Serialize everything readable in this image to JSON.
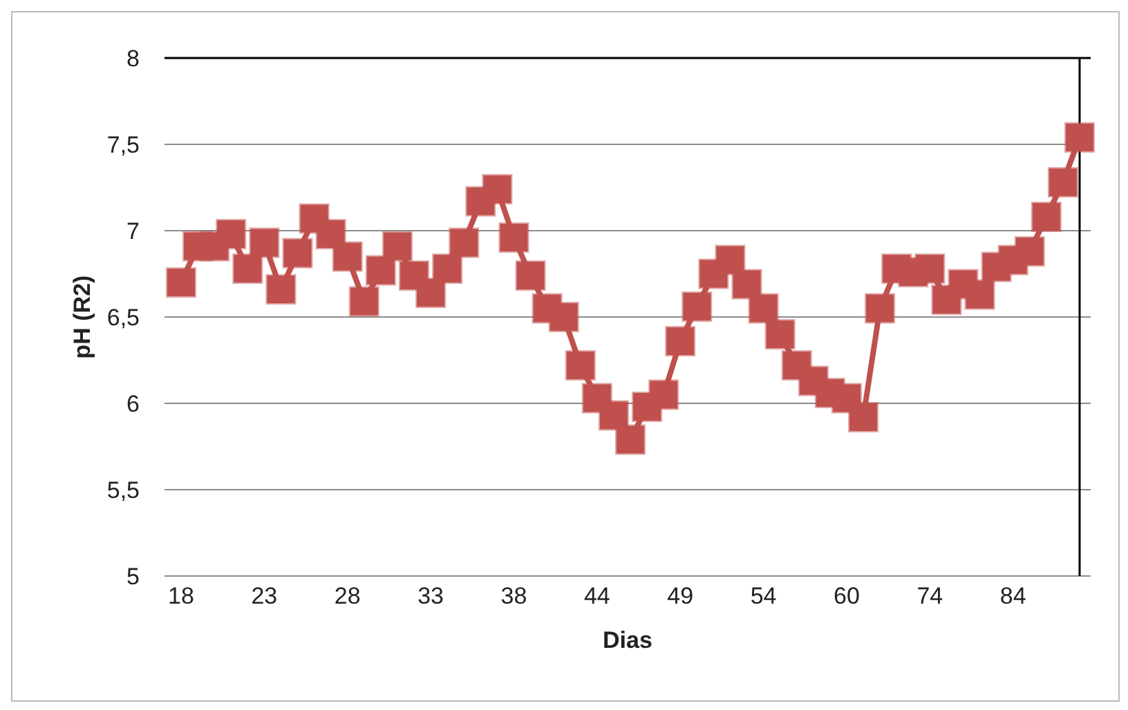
{
  "chart_data": {
    "type": "line",
    "xlabel": "Dias",
    "ylabel": "pH (R2)",
    "categories": [
      "18",
      null,
      null,
      null,
      null,
      "23",
      null,
      null,
      null,
      null,
      "28",
      null,
      null,
      null,
      null,
      "33",
      null,
      null,
      null,
      null,
      "38",
      null,
      null,
      null,
      null,
      "44",
      null,
      null,
      null,
      null,
      "49",
      null,
      null,
      null,
      null,
      "54",
      null,
      null,
      null,
      null,
      "60",
      null,
      null,
      null,
      null,
      "74",
      null,
      null,
      null,
      null,
      "84",
      null,
      null,
      null,
      null
    ],
    "series": [
      {
        "color": "#c0504d",
        "values": [
          6.7,
          6.91,
          6.91,
          6.98,
          6.78,
          6.93,
          6.66,
          6.87,
          7.07,
          6.98,
          6.85,
          6.59,
          6.77,
          6.91,
          6.74,
          6.64,
          6.78,
          6.93,
          7.17,
          7.24,
          6.96,
          6.74,
          6.55,
          6.5,
          6.22,
          6.03,
          5.93,
          5.79,
          5.98,
          6.05,
          6.36,
          6.56,
          6.75,
          6.83,
          6.69,
          6.55,
          6.4,
          6.22,
          6.13,
          6.06,
          6.03,
          5.92,
          6.55,
          6.78,
          6.76,
          6.78,
          6.6,
          6.69,
          6.63,
          6.79,
          6.83,
          6.88,
          7.08,
          7.28,
          7.54
        ]
      }
    ],
    "ylim": [
      5,
      8
    ],
    "yticks": [
      5,
      {
        "value": 5.5,
        "label": "5,5"
      },
      6,
      {
        "value": 6.5,
        "label": "6,5"
      },
      7,
      {
        "value": 7.5,
        "label": "7,5"
      },
      8
    ],
    "grid": "y",
    "marker": "square",
    "line_style": "solid"
  }
}
